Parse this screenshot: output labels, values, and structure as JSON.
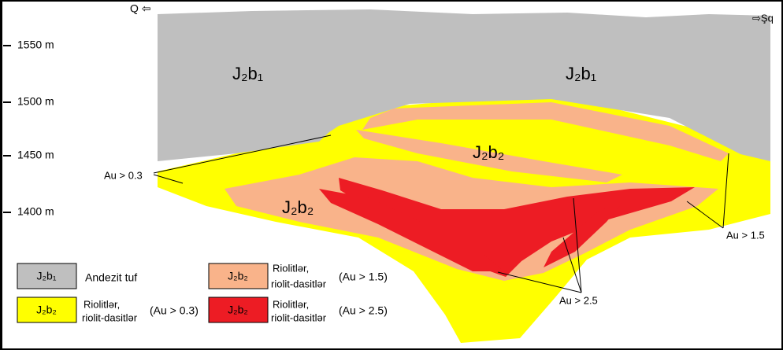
{
  "header": {
    "left_direction": "Q ⇦",
    "right_direction": "⇨Şq"
  },
  "elevation_labels": [
    "1550 m",
    "1500 m",
    "1450 m",
    "1400 m"
  ],
  "region_labels": [
    "J₂b₁",
    "J₂b₁",
    "J₂b₂",
    "J₂b₂"
  ],
  "annotations": [
    "Au > 0.3",
    "Au > 1.5",
    "Au > 2.5"
  ],
  "legend": [
    {
      "code": "J₂b₁",
      "name": "Andezit tuf"
    },
    {
      "code": "J₂b₂",
      "name_lines": [
        "Riolitlər,",
        "riolit-dasitlər"
      ],
      "grade": "(Au > 0.3)"
    },
    {
      "code": "J₂b₂",
      "name_lines": [
        "Riolitlər,",
        "riolit-dasitlər"
      ],
      "grade": "(Au > 1.5)"
    },
    {
      "code": "J₂b₂",
      "name_lines": [
        "Riolitlər,",
        "riolit-dasitlər"
      ],
      "grade": "(Au > 2.5)"
    }
  ]
}
